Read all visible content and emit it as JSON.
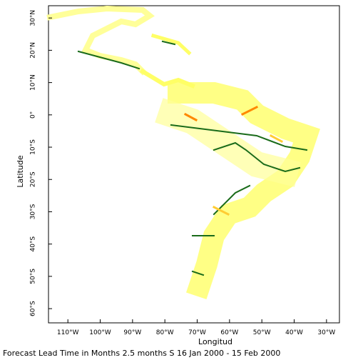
{
  "chart_data": {
    "type": "map",
    "title": "Forecast Lead Time in Months 2.5 months S 16 Jan 2000 - 15 Feb 2000",
    "x_label": "Longitud",
    "y_label": "Latitude",
    "xlim": [
      -116,
      -26
    ],
    "ylim": [
      -64.4,
      33.8
    ],
    "xticks": [
      {
        "value": -110,
        "label": "110°W"
      },
      {
        "value": -100,
        "label": "100°W"
      },
      {
        "value": -90,
        "label": "90°W"
      },
      {
        "value": -80,
        "label": "80°W"
      },
      {
        "value": -70,
        "label": "70°W"
      },
      {
        "value": -60,
        "label": "60°W"
      },
      {
        "value": -50,
        "label": "50°W"
      },
      {
        "value": -40,
        "label": "40°W"
      },
      {
        "value": -30,
        "label": "30°W"
      }
    ],
    "yticks": [
      {
        "value": 30,
        "label": "30°N"
      },
      {
        "value": 20,
        "label": "20°N"
      },
      {
        "value": 10,
        "label": "10°N"
      },
      {
        "value": 0,
        "label": "0°"
      },
      {
        "value": -10,
        "label": "10°S"
      },
      {
        "value": -20,
        "label": "20°S"
      },
      {
        "value": -30,
        "label": "30°S"
      },
      {
        "value": -40,
        "label": "40°S"
      },
      {
        "value": -50,
        "label": "50°S"
      },
      {
        "value": -60,
        "label": "60°S"
      }
    ]
  }
}
